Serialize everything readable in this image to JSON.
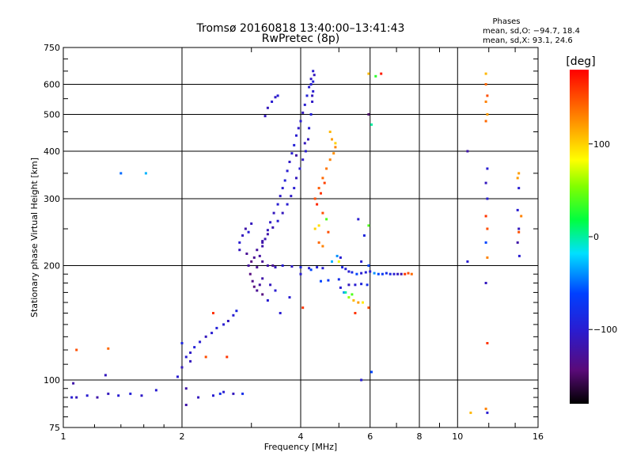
{
  "chart_data": {
    "type": "scatter",
    "title": "Tromsø 20160818 13:40:00–13:41:43",
    "subtitle": "RwPretec (8p)",
    "xlabel": "Frequency [MHz]",
    "ylabel": "Stationary phase Virtual Height [km]",
    "x_scale": "log",
    "y_scale": "log",
    "xlim": [
      1,
      16
    ],
    "ylim": [
      75,
      750
    ],
    "x_ticks": [
      1,
      2,
      4,
      6,
      8,
      10,
      16
    ],
    "y_ticks": [
      75,
      100,
      200,
      300,
      400,
      500,
      600,
      750
    ],
    "grid": true,
    "stats": {
      "heading": "Phases",
      "line_o": "mean, sd,O: −94.7, 18.4",
      "line_x": "mean, sd,X:  93.1, 24.6"
    },
    "colorbar": {
      "label": "[deg]",
      "range": [
        -180,
        180
      ],
      "ticks": [
        100,
        0,
        -100
      ],
      "tick_labels": [
        "100",
        "0",
        "−100"
      ],
      "colormap": "rainbow: black→purple→blue→cyan→green→yellow→orange→red"
    },
    "series": [
      {
        "points": [
          [
            1.05,
            90,
            -100
          ],
          [
            1.08,
            90,
            -110
          ],
          [
            1.15,
            91,
            -100
          ],
          [
            1.22,
            90,
            -120
          ],
          [
            1.3,
            92,
            -110
          ],
          [
            1.38,
            91,
            -100
          ],
          [
            1.48,
            92,
            -95
          ],
          [
            1.58,
            91,
            -105
          ],
          [
            1.72,
            94,
            -100
          ],
          [
            1.06,
            98,
            -120
          ],
          [
            1.28,
            103,
            -110
          ],
          [
            1.4,
            350,
            -50
          ],
          [
            1.62,
            350,
            -30
          ],
          [
            1.08,
            120,
            150
          ],
          [
            1.3,
            121,
            140
          ],
          [
            1.95,
            102,
            -100
          ],
          [
            2.0,
            108,
            -110
          ],
          [
            2.05,
            115,
            -100
          ],
          [
            2.1,
            118,
            -105
          ],
          [
            2.15,
            122,
            -95
          ],
          [
            2.22,
            126,
            -100
          ],
          [
            2.3,
            130,
            -110
          ],
          [
            2.38,
            133,
            -100
          ],
          [
            2.45,
            137,
            -95
          ],
          [
            2.55,
            140,
            -100
          ],
          [
            2.62,
            143,
            -110
          ],
          [
            2.7,
            148,
            -100
          ],
          [
            2.75,
            152,
            -90
          ],
          [
            2.0,
            125,
            -90
          ],
          [
            2.1,
            112,
            -110
          ],
          [
            2.05,
            95,
            -120
          ],
          [
            2.2,
            90,
            -110
          ],
          [
            2.4,
            91,
            -100
          ],
          [
            2.55,
            93,
            -100
          ],
          [
            2.7,
            92,
            -110
          ],
          [
            2.85,
            92,
            -80
          ],
          [
            2.4,
            150,
            160
          ],
          [
            2.3,
            115,
            150
          ],
          [
            2.6,
            115,
            160
          ],
          [
            2.5,
            92,
            -80
          ],
          [
            2.05,
            86,
            -120
          ],
          [
            2.8,
            220,
            -110
          ],
          [
            2.8,
            230,
            -100
          ],
          [
            2.85,
            240,
            -110
          ],
          [
            2.9,
            250,
            -120
          ],
          [
            2.92,
            215,
            -130
          ],
          [
            2.95,
            200,
            -125
          ],
          [
            2.98,
            190,
            -140
          ],
          [
            3.02,
            182,
            -135
          ],
          [
            3.05,
            176,
            -140
          ],
          [
            3.1,
            172,
            -130
          ],
          [
            3.15,
            178,
            -125
          ],
          [
            3.2,
            185,
            -120
          ],
          [
            3.1,
            198,
            -130
          ],
          [
            3.15,
            212,
            -125
          ],
          [
            3.2,
            225,
            -120
          ],
          [
            3.25,
            235,
            -115
          ],
          [
            3.3,
            248,
            -110
          ],
          [
            3.35,
            260,
            -105
          ],
          [
            3.42,
            275,
            -110
          ],
          [
            3.5,
            290,
            -100
          ],
          [
            3.55,
            305,
            -105
          ],
          [
            3.6,
            320,
            -100
          ],
          [
            3.65,
            335,
            -95
          ],
          [
            3.7,
            355,
            -100
          ],
          [
            3.75,
            375,
            -105
          ],
          [
            3.8,
            395,
            -100
          ],
          [
            3.85,
            415,
            -95
          ],
          [
            3.9,
            440,
            -100
          ],
          [
            3.95,
            460,
            -105
          ],
          [
            4.0,
            480,
            -100
          ],
          [
            4.05,
            505,
            -110
          ],
          [
            4.1,
            530,
            -100
          ],
          [
            4.15,
            560,
            -95
          ],
          [
            4.2,
            590,
            -100
          ],
          [
            4.25,
            620,
            -105
          ],
          [
            4.3,
            650,
            -100
          ],
          [
            4.33,
            635,
            -110
          ],
          [
            4.3,
            575,
            -100
          ],
          [
            4.28,
            540,
            -105
          ],
          [
            4.25,
            500,
            -95
          ],
          [
            4.2,
            460,
            -100
          ],
          [
            4.18,
            430,
            -110
          ],
          [
            4.12,
            400,
            -100
          ],
          [
            4.05,
            380,
            -105
          ],
          [
            3.98,
            360,
            -100
          ],
          [
            3.9,
            340,
            -110
          ],
          [
            3.85,
            320,
            -100
          ],
          [
            3.78,
            305,
            -105
          ],
          [
            3.7,
            290,
            -100
          ],
          [
            3.6,
            275,
            -110
          ],
          [
            3.5,
            262,
            -100
          ],
          [
            3.4,
            252,
            -115
          ],
          [
            3.3,
            242,
            -120
          ],
          [
            3.2,
            232,
            -120
          ],
          [
            3.1,
            220,
            -125
          ],
          [
            3.05,
            210,
            -130
          ],
          [
            3.0,
            205,
            -140
          ],
          [
            3.2,
            205,
            -130
          ],
          [
            3.3,
            200,
            -120
          ],
          [
            3.45,
            198,
            -110
          ],
          [
            3.6,
            200,
            -100
          ],
          [
            3.8,
            199,
            -105
          ],
          [
            4.0,
            198,
            -90
          ],
          [
            4.2,
            197,
            -100
          ],
          [
            4.4,
            198,
            -95
          ],
          [
            4.55,
            197,
            -100
          ],
          [
            3.3,
            520,
            -110
          ],
          [
            3.38,
            540,
            -100
          ],
          [
            3.45,
            555,
            -105
          ],
          [
            3.25,
            495,
            -110
          ],
          [
            3.5,
            560,
            -100
          ],
          [
            3.0,
            258,
            -110
          ],
          [
            3.2,
            230,
            -120
          ],
          [
            3.35,
            178,
            -110
          ],
          [
            3.45,
            172,
            -100
          ],
          [
            3.2,
            168,
            -140
          ],
          [
            3.3,
            162,
            -100
          ],
          [
            2.95,
            245,
            -100
          ],
          [
            3.9,
            390,
            -120
          ],
          [
            4.1,
            420,
            -110
          ],
          [
            4.25,
            600,
            -100
          ],
          [
            4.28,
            560,
            -110
          ],
          [
            4.3,
            610,
            -95
          ],
          [
            3.4,
            200,
            -130
          ],
          [
            4.0,
            190,
            -100
          ],
          [
            4.25,
            195,
            -60
          ],
          [
            4.35,
            300,
            150
          ],
          [
            4.45,
            320,
            145
          ],
          [
            4.55,
            340,
            140
          ],
          [
            4.65,
            360,
            135
          ],
          [
            4.75,
            380,
            130
          ],
          [
            4.85,
            395,
            125
          ],
          [
            4.9,
            410,
            130
          ],
          [
            4.8,
            430,
            120
          ],
          [
            4.6,
            330,
            155
          ],
          [
            4.5,
            310,
            160
          ],
          [
            4.4,
            290,
            165
          ],
          [
            4.55,
            275,
            150
          ],
          [
            4.35,
            250,
            100
          ],
          [
            4.45,
            255,
            95
          ],
          [
            4.65,
            265,
            40
          ],
          [
            4.7,
            245,
            150
          ],
          [
            4.75,
            450,
            110
          ],
          [
            4.9,
            420,
            100
          ],
          [
            4.45,
            230,
            140
          ],
          [
            4.55,
            225,
            130
          ],
          [
            4.8,
            205,
            -30
          ],
          [
            4.95,
            212,
            -40
          ],
          [
            5.0,
            205,
            80
          ],
          [
            5.05,
            210,
            -100
          ],
          [
            5.1,
            198,
            -90
          ],
          [
            5.2,
            196,
            -95
          ],
          [
            5.3,
            193,
            -100
          ],
          [
            5.4,
            192,
            -85
          ],
          [
            5.55,
            190,
            -60
          ],
          [
            5.7,
            191,
            -100
          ],
          [
            5.85,
            192,
            -95
          ],
          [
            6.0,
            193,
            -100
          ],
          [
            6.15,
            191,
            -40
          ],
          [
            6.3,
            190,
            -60
          ],
          [
            6.45,
            190,
            -70
          ],
          [
            6.6,
            191,
            -80
          ],
          [
            6.75,
            190,
            -90
          ],
          [
            6.9,
            190,
            -100
          ],
          [
            7.05,
            190,
            -110
          ],
          [
            7.2,
            190,
            -120
          ],
          [
            7.35,
            190,
            160
          ],
          [
            7.5,
            191,
            150
          ],
          [
            7.65,
            190,
            140
          ],
          [
            5.3,
            178,
            -110
          ],
          [
            5.5,
            178,
            -100
          ],
          [
            5.7,
            179,
            -90
          ],
          [
            5.9,
            178,
            -80
          ],
          [
            5.05,
            175,
            -100
          ],
          [
            5.15,
            170,
            -40
          ],
          [
            5.3,
            165,
            60
          ],
          [
            5.45,
            162,
            110
          ],
          [
            5.6,
            160,
            120
          ],
          [
            5.75,
            160,
            90
          ],
          [
            5.95,
            155,
            150
          ],
          [
            5.95,
            200,
            -60
          ],
          [
            5.7,
            205,
            -100
          ],
          [
            5.95,
            255,
            40
          ],
          [
            5.95,
            500,
            -150
          ],
          [
            6.4,
            640,
            170
          ],
          [
            6.2,
            630,
            30
          ],
          [
            5.95,
            640,
            110
          ],
          [
            6.05,
            470,
            0
          ],
          [
            5.6,
            265,
            -100
          ],
          [
            5.8,
            240,
            -90
          ],
          [
            6.05,
            105,
            -60
          ],
          [
            10.6,
            400,
            -120
          ],
          [
            11.8,
            640,
            110
          ],
          [
            11.8,
            600,
            140
          ],
          [
            11.9,
            560,
            150
          ],
          [
            11.8,
            540,
            130
          ],
          [
            11.9,
            500,
            120
          ],
          [
            11.8,
            480,
            140
          ],
          [
            11.9,
            360,
            -100
          ],
          [
            11.8,
            330,
            -110
          ],
          [
            11.9,
            300,
            -100
          ],
          [
            11.8,
            270,
            160
          ],
          [
            11.9,
            250,
            150
          ],
          [
            11.8,
            230,
            -60
          ],
          [
            11.9,
            210,
            130
          ],
          [
            11.8,
            180,
            -110
          ],
          [
            11.9,
            125,
            160
          ],
          [
            11.8,
            84,
            130
          ],
          [
            11.9,
            82,
            -100
          ],
          [
            10.8,
            82,
            110
          ],
          [
            10.6,
            205,
            -100
          ],
          [
            14.3,
            350,
            120
          ],
          [
            14.2,
            340,
            120
          ],
          [
            14.3,
            320,
            -100
          ],
          [
            14.2,
            280,
            -100
          ],
          [
            14.3,
            250,
            -110
          ],
          [
            14.2,
            230,
            -120
          ],
          [
            14.5,
            270,
            130
          ],
          [
            14.3,
            245,
            150
          ],
          [
            14.35,
            212,
            -100
          ],
          [
            5.7,
            100,
            -100
          ],
          [
            3.55,
            150,
            -100
          ],
          [
            3.75,
            165,
            -100
          ],
          [
            4.5,
            182,
            -60
          ],
          [
            4.7,
            183,
            -70
          ],
          [
            5.0,
            184,
            -80
          ],
          [
            5.2,
            170,
            0
          ],
          [
            5.4,
            168,
            40
          ],
          [
            5.5,
            150,
            160
          ],
          [
            4.05,
            155,
            160
          ]
        ]
      }
    ]
  }
}
